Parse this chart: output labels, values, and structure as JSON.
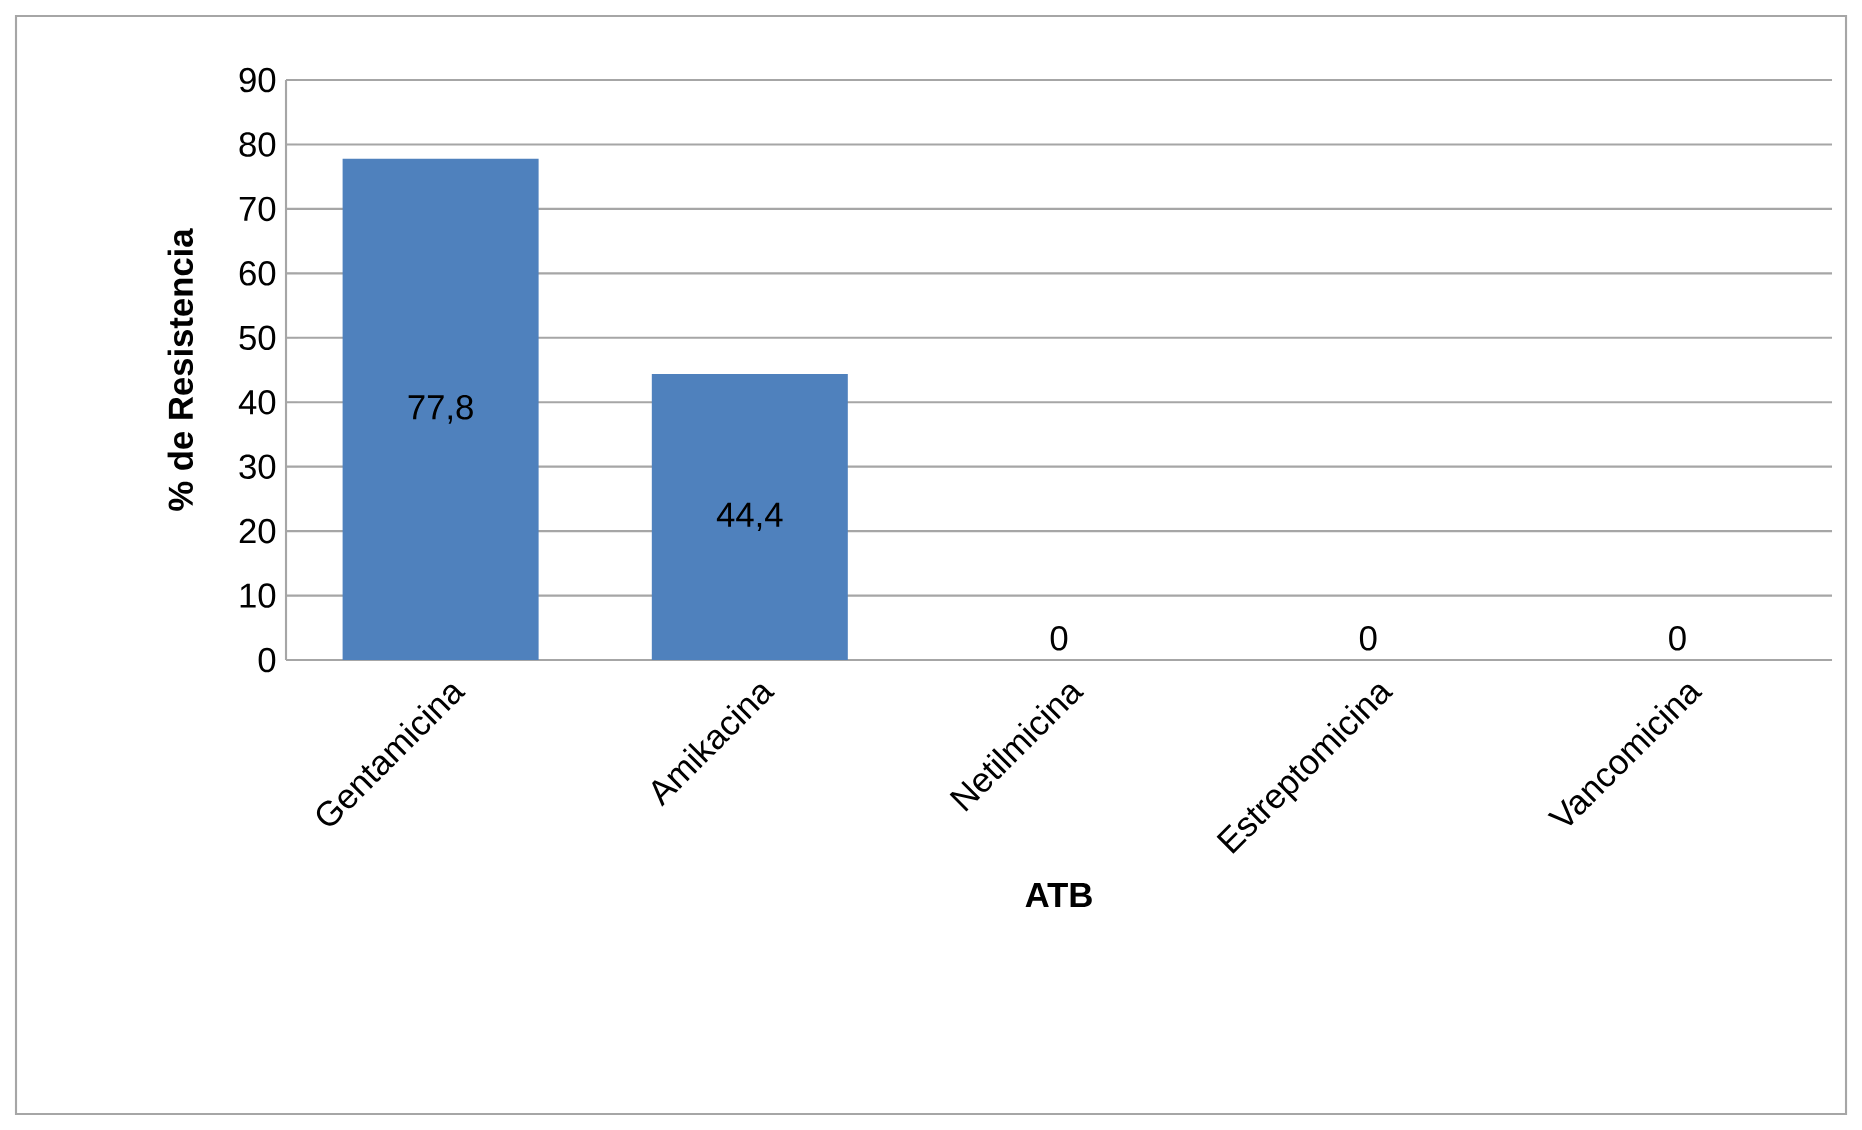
{
  "chart_data": {
    "type": "bar",
    "categories": [
      "Gentamicina",
      "Amikacina",
      "Netilmicina",
      "Estreptomicina",
      "Vancomicina"
    ],
    "values": [
      77.8,
      44.4,
      0,
      0,
      0
    ],
    "value_labels": [
      "77,8",
      "44,4",
      "0",
      "0",
      "0"
    ],
    "color": "#4f81bd",
    "xlabel": "ATB",
    "ylabel": "% de Resistencia",
    "ylim": [
      0,
      90
    ],
    "yticks": [
      0,
      10,
      20,
      30,
      40,
      50,
      60,
      70,
      80,
      90
    ],
    "grid": "y"
  }
}
